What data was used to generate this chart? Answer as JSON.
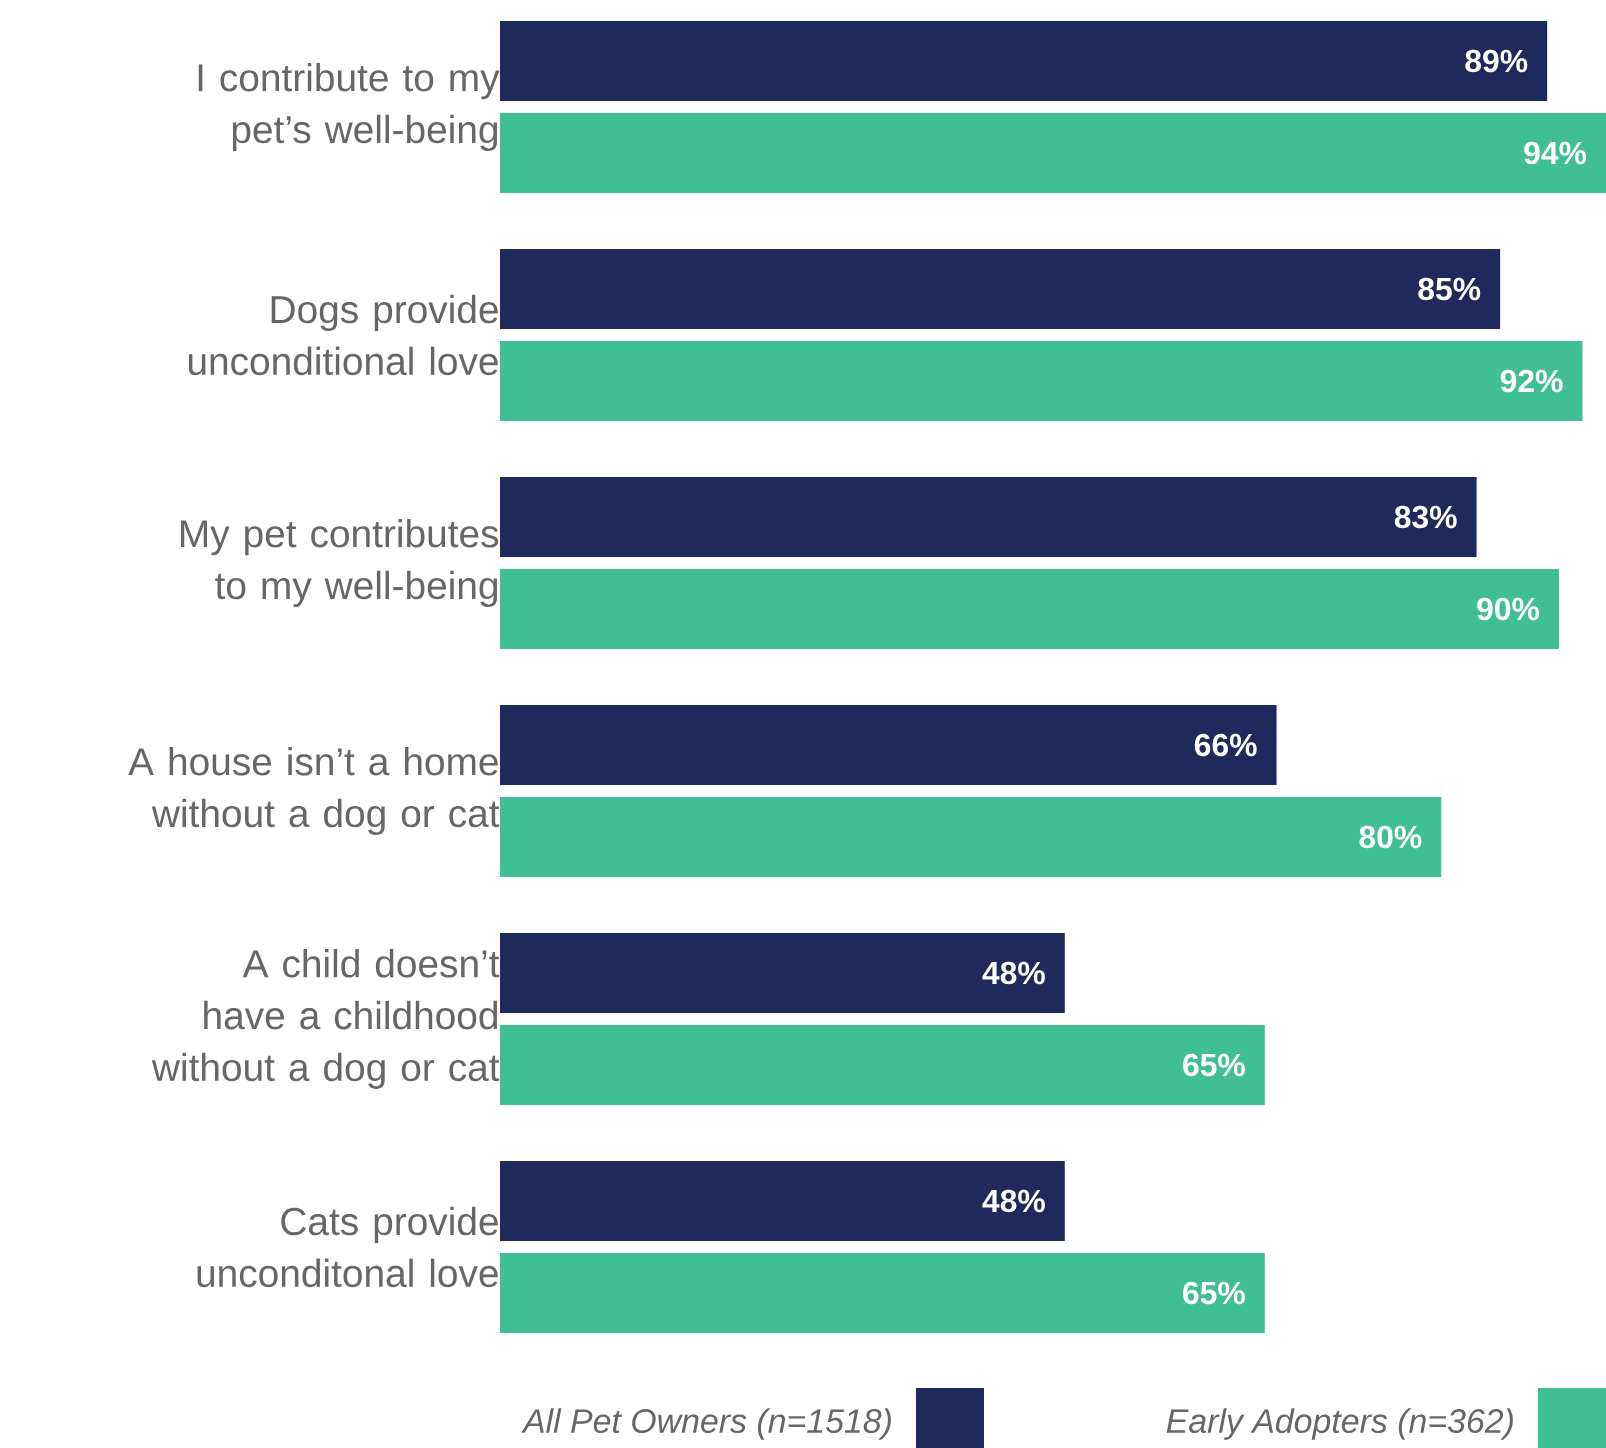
{
  "chart_data": {
    "type": "bar",
    "orientation": "horizontal",
    "categories": [
      "I contribute to my pet’s well-being",
      "Dogs provide unconditional love",
      "My pet contributes to my well-being",
      "A house isn’t a home without a dog or cat",
      "A child doesn’t have a childhood without a dog or cat",
      "Cats provide unconditonal love"
    ],
    "series": [
      {
        "name": "All Pet Owners (n=1518)",
        "color": "#1f2a5c",
        "values": [
          89,
          85,
          83,
          66,
          48,
          48
        ],
        "value_labels": [
          "89%",
          "85%",
          "83%",
          "66%",
          "48%",
          "48%"
        ]
      },
      {
        "name": "Early Adopters (n=362)",
        "color": "#40bf94",
        "values": [
          94,
          92,
          90,
          80,
          65,
          65
        ],
        "value_labels": [
          "94%",
          "92%",
          "90%",
          "80%",
          "65%",
          "65%"
        ]
      }
    ],
    "legend": "bottom"
  }
}
